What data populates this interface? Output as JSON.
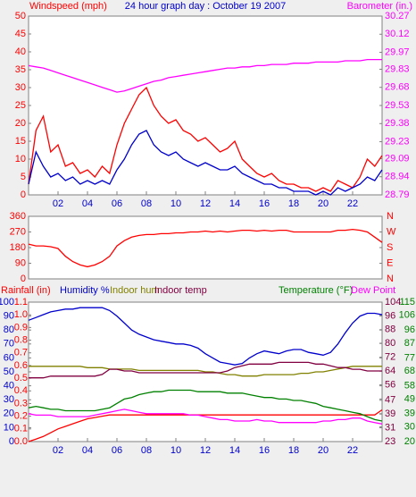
{
  "chart_data": [
    {
      "type": "line",
      "title": "24 hour graph day : October 19 2007",
      "x": [
        0,
        0.5,
        1,
        1.5,
        2,
        2.5,
        3,
        3.5,
        4,
        4.5,
        5,
        5.5,
        6,
        6.5,
        7,
        7.5,
        8,
        8.5,
        9,
        9.5,
        10,
        10.5,
        11,
        11.5,
        12,
        12.5,
        13,
        13.5,
        14,
        14.5,
        15,
        15.5,
        16,
        16.5,
        17,
        17.5,
        18,
        18.5,
        19,
        19.5,
        20,
        20.5,
        21,
        21.5,
        22,
        22.5,
        23,
        23.5,
        24
      ],
      "xlim": [
        0,
        24
      ],
      "xticks": [
        {
          "value": 2,
          "label": "02"
        },
        {
          "value": 4,
          "label": "04"
        },
        {
          "value": 6,
          "label": "06"
        },
        {
          "value": 8,
          "label": "08"
        },
        {
          "value": 10,
          "label": "10"
        },
        {
          "value": 12,
          "label": "12"
        },
        {
          "value": 14,
          "label": "14"
        },
        {
          "value": 16,
          "label": "16"
        },
        {
          "value": 18,
          "label": "18"
        },
        {
          "value": 20,
          "label": "20"
        },
        {
          "value": 22,
          "label": "22"
        }
      ],
      "ylim": [
        0,
        50
      ],
      "yticks": [
        0,
        5,
        10,
        15,
        20,
        25,
        30,
        35,
        40,
        45,
        50
      ],
      "y2lim": [
        28.79,
        30.27
      ],
      "y2ticks": [
        28.79,
        28.94,
        29.09,
        29.23,
        29.38,
        29.53,
        29.68,
        29.83,
        29.97,
        30.12,
        30.27
      ],
      "series": [
        {
          "name": "Windspeed (mph)",
          "color": "#ff0000",
          "axis": "y",
          "values": [
            3,
            18,
            22,
            12,
            14,
            8,
            9,
            6,
            7,
            5,
            8,
            6,
            14,
            20,
            24,
            28,
            30,
            25,
            22,
            20,
            21,
            18,
            17,
            15,
            16,
            14,
            12,
            13,
            15,
            10,
            8,
            6,
            5,
            6,
            4,
            3,
            3,
            2,
            2,
            1,
            2,
            1,
            4,
            3,
            2,
            5,
            10,
            8,
            11
          ]
        },
        {
          "color": "#0000cc",
          "axis": "y",
          "values": [
            3,
            12,
            8,
            5,
            6,
            4,
            5,
            3,
            4,
            3,
            4,
            3,
            7,
            10,
            14,
            17,
            18,
            14,
            12,
            11,
            12,
            10,
            9,
            8,
            9,
            8,
            7,
            7,
            8,
            6,
            5,
            4,
            3,
            3,
            2,
            2,
            1,
            1,
            1,
            0,
            1,
            0,
            2,
            1,
            2,
            3,
            5,
            4,
            7
          ]
        },
        {
          "name": "Barometer (in.)",
          "color": "#ff00ff",
          "axis": "y2",
          "values": [
            29.86,
            29.85,
            29.84,
            29.82,
            29.8,
            29.78,
            29.76,
            29.74,
            29.72,
            29.7,
            29.68,
            29.66,
            29.64,
            29.65,
            29.67,
            29.69,
            29.71,
            29.73,
            29.74,
            29.76,
            29.77,
            29.78,
            29.79,
            29.8,
            29.81,
            29.82,
            29.83,
            29.84,
            29.84,
            29.85,
            29.85,
            29.86,
            29.86,
            29.87,
            29.87,
            29.87,
            29.88,
            29.88,
            29.88,
            29.89,
            29.89,
            29.89,
            29.89,
            29.9,
            29.9,
            29.9,
            29.91,
            29.91,
            29.91
          ]
        }
      ]
    },
    {
      "type": "line",
      "x": [
        0,
        0.5,
        1,
        1.5,
        2,
        2.5,
        3,
        3.5,
        4,
        4.5,
        5,
        5.5,
        6,
        6.5,
        7,
        7.5,
        8,
        8.5,
        9,
        9.5,
        10,
        10.5,
        11,
        11.5,
        12,
        12.5,
        13,
        13.5,
        14,
        14.5,
        15,
        15.5,
        16,
        16.5,
        17,
        17.5,
        18,
        18.5,
        19,
        19.5,
        20,
        20.5,
        21,
        21.5,
        22,
        22.5,
        23,
        23.5,
        24
      ],
      "xlim": [
        0,
        24
      ],
      "ylim": [
        0,
        360
      ],
      "yticks": [
        0,
        90,
        180,
        270,
        360
      ],
      "y2lim": [
        0,
        360
      ],
      "y2ticks": [
        {
          "value": 0,
          "label": "N"
        },
        {
          "value": 90,
          "label": "E"
        },
        {
          "value": 180,
          "label": "S"
        },
        {
          "value": 270,
          "label": "W"
        },
        {
          "value": 360,
          "label": "N"
        }
      ],
      "series": [
        {
          "color": "#ff0000",
          "axis": "y",
          "values": [
            200,
            190,
            190,
            185,
            175,
            130,
            100,
            80,
            70,
            80,
            100,
            130,
            190,
            220,
            240,
            250,
            255,
            255,
            260,
            260,
            265,
            265,
            270,
            270,
            275,
            270,
            275,
            270,
            275,
            280,
            280,
            275,
            280,
            275,
            280,
            280,
            270,
            270,
            270,
            270,
            270,
            270,
            280,
            280,
            285,
            280,
            270,
            240,
            210
          ]
        }
      ]
    },
    {
      "type": "line",
      "x": [
        0,
        0.5,
        1,
        1.5,
        2,
        2.5,
        3,
        3.5,
        4,
        4.5,
        5,
        5.5,
        6,
        6.5,
        7,
        7.5,
        8,
        8.5,
        9,
        9.5,
        10,
        10.5,
        11,
        11.5,
        12,
        12.5,
        13,
        13.5,
        14,
        14.5,
        15,
        15.5,
        16,
        16.5,
        17,
        17.5,
        18,
        18.5,
        19,
        19.5,
        20,
        20.5,
        21,
        21.5,
        22,
        22.5,
        23,
        23.5,
        24
      ],
      "xlim": [
        0,
        24
      ],
      "xticks": [
        {
          "value": 2,
          "label": "02"
        },
        {
          "value": 4,
          "label": "04"
        },
        {
          "value": 6,
          "label": "06"
        },
        {
          "value": 8,
          "label": "08"
        },
        {
          "value": 10,
          "label": "10"
        },
        {
          "value": 12,
          "label": "12"
        },
        {
          "value": 14,
          "label": "14"
        },
        {
          "value": 16,
          "label": "16"
        },
        {
          "value": 18,
          "label": "18"
        },
        {
          "value": 20,
          "label": "20"
        },
        {
          "value": 22,
          "label": "22"
        }
      ],
      "ylim": [
        0,
        100
      ],
      "yticks": [
        0,
        10,
        20,
        30,
        40,
        50,
        60,
        70,
        80,
        90,
        100
      ],
      "y3lim": [
        0,
        1.1
      ],
      "y3ticks": [
        {
          "value": 0,
          "label": "0.0"
        },
        0.1,
        0.2,
        0.3,
        0.4,
        0.5,
        0.6,
        0.7,
        0.8,
        0.9,
        {
          "value": 1,
          "label": "1.0"
        },
        1.1
      ],
      "y2lim": [
        23,
        104
      ],
      "y2ticks": [
        23,
        31,
        39,
        47,
        56,
        64,
        72,
        80,
        88,
        96,
        104
      ],
      "y4lim": [
        20,
        115
      ],
      "y4ticks": [
        20,
        30,
        39,
        49,
        58,
        68,
        77,
        87,
        96,
        106,
        115
      ],
      "series": [
        {
          "name": "Rainfall (in)",
          "color": "#ff0000",
          "axis": "y3",
          "values": [
            0,
            0.02,
            0.04,
            0.07,
            0.1,
            0.12,
            0.14,
            0.16,
            0.18,
            0.19,
            0.2,
            0.21,
            0.21,
            0.21,
            0.21,
            0.21,
            0.21,
            0.21,
            0.21,
            0.21,
            0.21,
            0.21,
            0.21,
            0.21,
            0.21,
            0.21,
            0.21,
            0.21,
            0.21,
            0.21,
            0.21,
            0.21,
            0.21,
            0.21,
            0.21,
            0.21,
            0.21,
            0.21,
            0.21,
            0.21,
            0.21,
            0.21,
            0.21,
            0.21,
            0.21,
            0.21,
            0.21,
            0.21,
            0.25
          ]
        },
        {
          "name": "Humidity %",
          "color": "#0000cc",
          "axis": "y",
          "values": [
            87,
            89,
            91,
            93,
            94,
            95,
            95,
            96,
            96,
            96,
            96,
            94,
            90,
            85,
            80,
            77,
            75,
            73,
            72,
            71,
            70,
            70,
            69,
            67,
            63,
            60,
            57,
            56,
            55,
            56,
            60,
            63,
            65,
            64,
            63,
            65,
            66,
            66,
            64,
            63,
            62,
            64,
            70,
            78,
            85,
            90,
            92,
            92,
            91
          ]
        },
        {
          "name": "Indoor hum",
          "color": "#808000",
          "axis": "y",
          "values": [
            54,
            54,
            54,
            54,
            54,
            54,
            54,
            54,
            53,
            53,
            53,
            52,
            52,
            52,
            52,
            51,
            51,
            51,
            51,
            51,
            51,
            51,
            51,
            51,
            50,
            50,
            49,
            48,
            48,
            47,
            47,
            47,
            48,
            48,
            48,
            48,
            48,
            49,
            49,
            50,
            50,
            51,
            52,
            53,
            54,
            54,
            54,
            54,
            54
          ]
        },
        {
          "name": "Indoor temp",
          "color": "#800040",
          "axis": "y2",
          "values": [
            60,
            60,
            60,
            61,
            61,
            61,
            61,
            61,
            61,
            61,
            62,
            65,
            65,
            64,
            64,
            63,
            63,
            63,
            63,
            63,
            63,
            63,
            63,
            63,
            63,
            63,
            63,
            64,
            66,
            67,
            68,
            68,
            68,
            68,
            69,
            69,
            69,
            69,
            69,
            68,
            68,
            67,
            66,
            66,
            65,
            65,
            64,
            64,
            64
          ]
        },
        {
          "name": "Temperature (°F)",
          "color": "#008000",
          "axis": "y4",
          "values": [
            43,
            44,
            43,
            42,
            42,
            41,
            41,
            41,
            41,
            41,
            42,
            43,
            46,
            49,
            50,
            52,
            53,
            54,
            54,
            55,
            55,
            55,
            55,
            54,
            54,
            54,
            54,
            53,
            53,
            53,
            52,
            51,
            50,
            50,
            49,
            49,
            48,
            48,
            47,
            46,
            44,
            43,
            42,
            41,
            40,
            39,
            37,
            35,
            34
          ]
        },
        {
          "name": "Dew Point",
          "color": "#ff00ff",
          "axis": "y4",
          "values": [
            39,
            38,
            38,
            38,
            37,
            37,
            37,
            37,
            37,
            38,
            39,
            40,
            41,
            42,
            41,
            40,
            39,
            39,
            39,
            39,
            39,
            39,
            38,
            38,
            37,
            36,
            35,
            35,
            34,
            34,
            34,
            35,
            34,
            34,
            33,
            33,
            33,
            33,
            33,
            33,
            34,
            34,
            35,
            35,
            36,
            36,
            34,
            33,
            32
          ]
        }
      ]
    }
  ]
}
